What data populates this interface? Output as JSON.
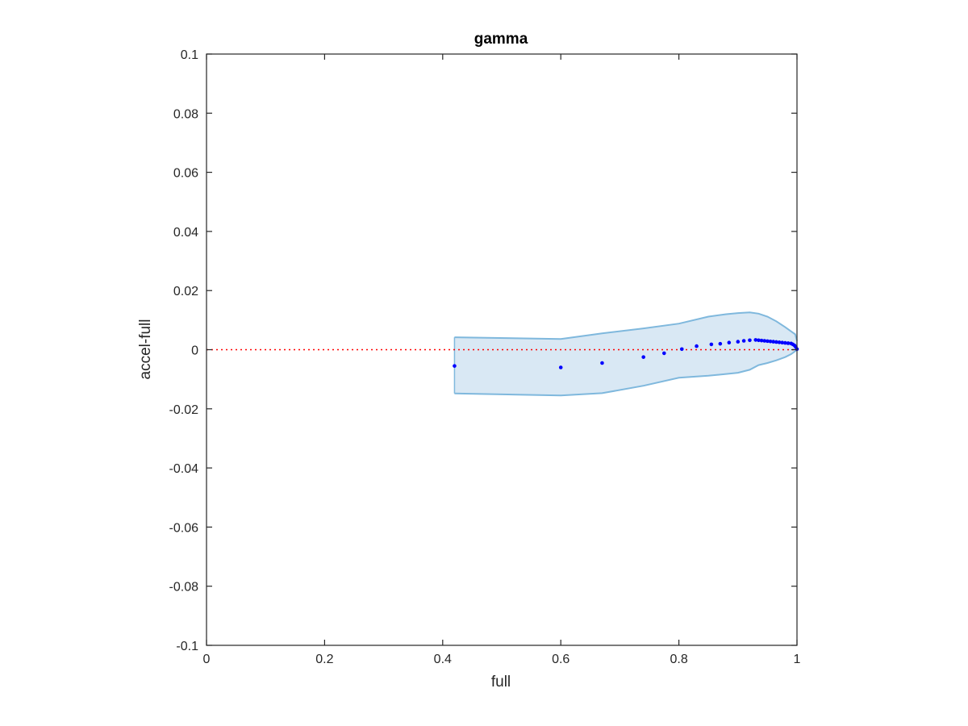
{
  "chart_data": {
    "type": "scatter",
    "title": "gamma",
    "xlabel": "full",
    "ylabel": "accel-full",
    "xlim": [
      0,
      1
    ],
    "ylim": [
      -0.1,
      0.1
    ],
    "xticks": [
      "0",
      "0.2",
      "0.4",
      "0.6",
      "0.8",
      "1"
    ],
    "yticks": [
      "-0.1",
      "-0.08",
      "-0.06",
      "-0.04",
      "-0.02",
      "0",
      "0.02",
      "0.04",
      "0.06",
      "0.08",
      "0.1"
    ],
    "xtick_values": [
      0,
      0.2,
      0.4,
      0.6,
      0.8,
      1
    ],
    "ytick_values": [
      -0.1,
      -0.08,
      -0.06,
      -0.04,
      -0.02,
      0,
      0.02,
      0.04,
      0.06,
      0.08,
      0.1
    ],
    "grid": false,
    "reference_line": {
      "y": 0,
      "style": "dotted",
      "color": "#ff0000"
    },
    "points": {
      "x": [
        0.42,
        0.6,
        0.67,
        0.74,
        0.775,
        0.805,
        0.83,
        0.855,
        0.87,
        0.885,
        0.9,
        0.91,
        0.92,
        0.93,
        0.935,
        0.94,
        0.945,
        0.95,
        0.955,
        0.96,
        0.965,
        0.97,
        0.975,
        0.98,
        0.985,
        0.99,
        0.993,
        0.996,
        0.998,
        1.0
      ],
      "y": [
        -0.0055,
        -0.006,
        -0.0045,
        -0.0025,
        -0.0012,
        0.0002,
        0.0012,
        0.0018,
        0.002,
        0.0024,
        0.0027,
        0.003,
        0.0032,
        0.0033,
        0.0032,
        0.0031,
        0.003,
        0.0029,
        0.0028,
        0.0027,
        0.0026,
        0.0025,
        0.0024,
        0.0023,
        0.0022,
        0.0021,
        0.0018,
        0.0014,
        0.0009,
        0.0002
      ],
      "color": "#0000ff"
    },
    "confidence_band": {
      "color": "#7fb8dd",
      "fill": "#d9e8f4",
      "x": [
        0.42,
        0.6,
        0.67,
        0.74,
        0.8,
        0.85,
        0.88,
        0.9,
        0.92,
        0.935,
        0.95,
        0.965,
        0.98,
        0.99,
        0.997,
        1.0
      ],
      "upper": [
        0.0042,
        0.0036,
        0.0055,
        0.0072,
        0.0088,
        0.0112,
        0.012,
        0.0124,
        0.0126,
        0.0122,
        0.0112,
        0.0096,
        0.0076,
        0.0062,
        0.0052,
        0.003
      ],
      "lower": [
        -0.0148,
        -0.0155,
        -0.0147,
        -0.0122,
        -0.0095,
        -0.0088,
        -0.0082,
        -0.0078,
        -0.0068,
        -0.0052,
        -0.0045,
        -0.0036,
        -0.0025,
        -0.0015,
        -0.0005,
        0.0
      ]
    }
  }
}
